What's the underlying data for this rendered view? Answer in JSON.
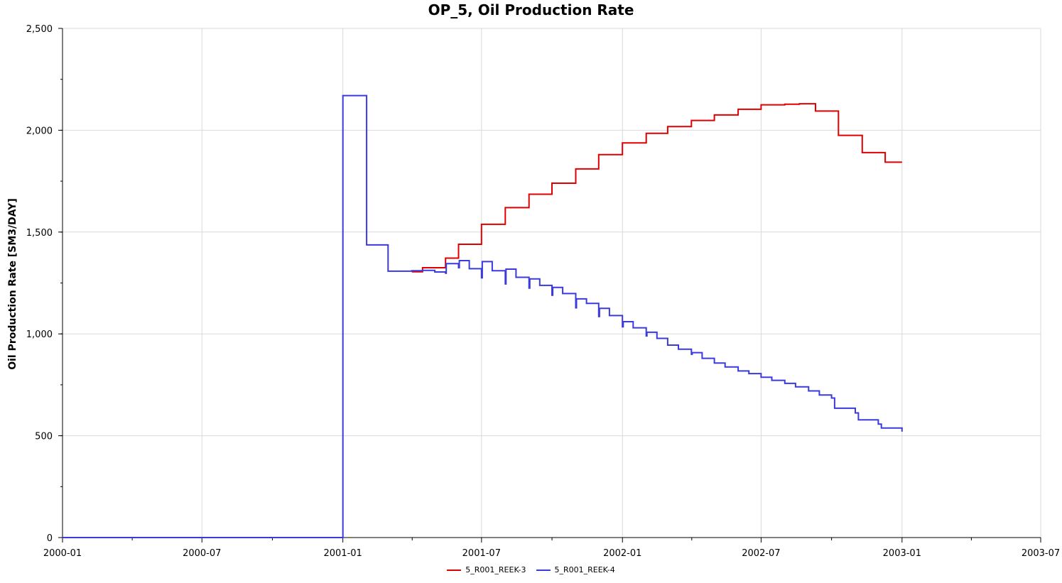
{
  "chart_data": {
    "type": "line",
    "title": "OP_5, Oil Production Rate",
    "xlabel": "",
    "ylabel": "Oil Production Rate [SM3/DAY]",
    "xlim": [
      "2000-01-01",
      "2003-07-01"
    ],
    "ylim": [
      0,
      2500
    ],
    "yticks": [
      0,
      500,
      1000,
      1500,
      2000,
      2500
    ],
    "ytick_labels": [
      "0",
      "500",
      "1,000",
      "1,500",
      "2,000",
      "2,500"
    ],
    "xticks": [
      "2000-01-01",
      "2000-07-01",
      "2001-01-01",
      "2001-07-01",
      "2002-01-01",
      "2002-07-01",
      "2003-01-01",
      "2003-07-01"
    ],
    "xtick_labels": [
      "2000-01",
      "2000-07",
      "2001-01",
      "2001-07",
      "2002-01",
      "2002-07",
      "2003-01",
      "2003-07"
    ],
    "grid": true,
    "legend_position": "bottom-center",
    "series": [
      {
        "name": "5_R001_REEK-3",
        "color": "#e00000",
        "step": true,
        "points": [
          [
            "2001-04-01",
            1305
          ],
          [
            "2001-04-15",
            1325
          ],
          [
            "2001-05-15",
            1372
          ],
          [
            "2001-06-01",
            1440
          ],
          [
            "2001-07-01",
            1538
          ],
          [
            "2001-08-01",
            1620
          ],
          [
            "2001-09-01",
            1686
          ],
          [
            "2001-10-01",
            1740
          ],
          [
            "2001-11-01",
            1810
          ],
          [
            "2001-12-01",
            1880
          ],
          [
            "2002-01-01",
            1938
          ],
          [
            "2002-02-01",
            1985
          ],
          [
            "2002-03-01",
            2018
          ],
          [
            "2002-04-01",
            2048
          ],
          [
            "2002-05-01",
            2075
          ],
          [
            "2002-06-01",
            2103
          ],
          [
            "2002-07-01",
            2125
          ],
          [
            "2002-08-01",
            2128
          ],
          [
            "2002-08-20",
            2130
          ],
          [
            "2002-09-10",
            2094
          ],
          [
            "2002-10-10",
            1975
          ],
          [
            "2002-11-10",
            1890
          ],
          [
            "2002-12-10",
            1843
          ],
          [
            "2003-01-01",
            1843
          ]
        ]
      },
      {
        "name": "5_R001_REEK-4",
        "color": "#3a3add",
        "step": true,
        "points": [
          [
            "2000-01-01",
            0
          ],
          [
            "2001-01-01",
            2170
          ],
          [
            "2001-02-01",
            1437
          ],
          [
            "2001-03-01",
            1308
          ],
          [
            "2001-04-01",
            1310
          ],
          [
            "2001-04-15",
            1312
          ],
          [
            "2001-05-01",
            1304
          ],
          [
            "2001-05-15",
            1298
          ],
          [
            "2001-05-16",
            1345
          ],
          [
            "2001-06-01",
            1325
          ],
          [
            "2001-06-02",
            1360
          ],
          [
            "2001-06-15",
            1320
          ],
          [
            "2001-07-01",
            1275
          ],
          [
            "2001-07-02",
            1355
          ],
          [
            "2001-07-15",
            1310
          ],
          [
            "2001-08-01",
            1245
          ],
          [
            "2001-08-02",
            1318
          ],
          [
            "2001-08-15",
            1278
          ],
          [
            "2001-09-01",
            1225
          ],
          [
            "2001-09-02",
            1270
          ],
          [
            "2001-09-15",
            1238
          ],
          [
            "2001-10-01",
            1190
          ],
          [
            "2001-10-02",
            1228
          ],
          [
            "2001-10-15",
            1198
          ],
          [
            "2001-11-01",
            1128
          ],
          [
            "2001-11-02",
            1172
          ],
          [
            "2001-11-15",
            1150
          ],
          [
            "2001-12-01",
            1085
          ],
          [
            "2001-12-02",
            1125
          ],
          [
            "2001-12-15",
            1090
          ],
          [
            "2002-01-01",
            1035
          ],
          [
            "2002-01-02",
            1060
          ],
          [
            "2002-01-15",
            1030
          ],
          [
            "2002-02-01",
            990
          ],
          [
            "2002-02-02",
            1008
          ],
          [
            "2002-02-15",
            978
          ],
          [
            "2002-03-01",
            945
          ],
          [
            "2002-03-15",
            925
          ],
          [
            "2002-04-01",
            900
          ],
          [
            "2002-04-02",
            908
          ],
          [
            "2002-04-15",
            880
          ],
          [
            "2002-05-01",
            857
          ],
          [
            "2002-05-15",
            838
          ],
          [
            "2002-06-01",
            818
          ],
          [
            "2002-06-15",
            805
          ],
          [
            "2002-07-01",
            787
          ],
          [
            "2002-07-15",
            772
          ],
          [
            "2002-08-01",
            757
          ],
          [
            "2002-08-15",
            740
          ],
          [
            "2002-09-01",
            720
          ],
          [
            "2002-09-15",
            700
          ],
          [
            "2002-10-01",
            685
          ],
          [
            "2002-10-05",
            635
          ],
          [
            "2002-11-01",
            612
          ],
          [
            "2002-11-05",
            578
          ],
          [
            "2002-12-01",
            557
          ],
          [
            "2002-12-05",
            538
          ],
          [
            "2003-01-01",
            520
          ]
        ]
      }
    ]
  }
}
